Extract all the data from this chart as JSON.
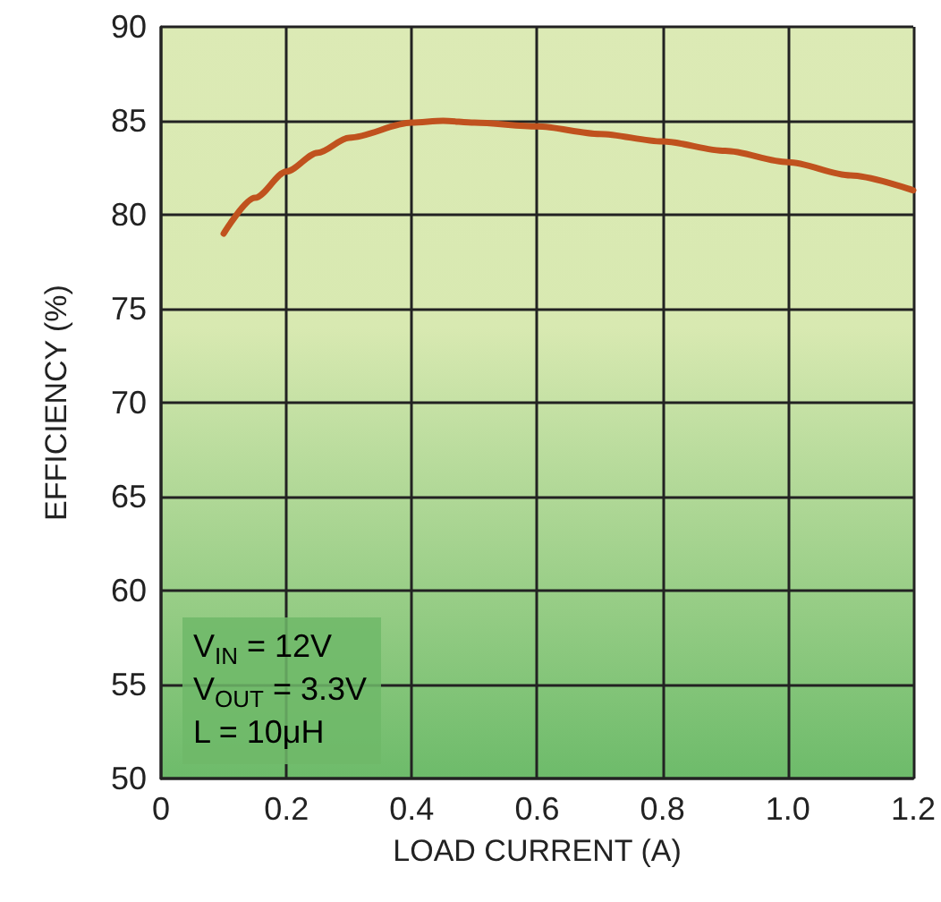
{
  "chart_data": {
    "type": "line",
    "xlabel": "LOAD CURRENT (A)",
    "ylabel": "EFFICIENCY (%)",
    "x": [
      0.1,
      0.15,
      0.2,
      0.25,
      0.3,
      0.4,
      0.45,
      0.5,
      0.6,
      0.7,
      0.8,
      0.9,
      1.0,
      1.1,
      1.2
    ],
    "series": [
      {
        "color": "#c0521e",
        "values": [
          79.0,
          80.9,
          82.3,
          83.3,
          84.1,
          84.9,
          85.0,
          84.9,
          84.7,
          84.3,
          83.9,
          83.4,
          82.8,
          82.1,
          81.3
        ]
      }
    ],
    "xlim": [
      0,
      1.2
    ],
    "xticks": [
      0,
      {
        "value": 0.2,
        "label": "0.2"
      },
      {
        "value": 0.4,
        "label": "0.4"
      },
      {
        "value": 0.6,
        "label": "0.6"
      },
      {
        "value": 0.8,
        "label": "0.8"
      },
      {
        "value": 1.0,
        "label": "1.0"
      },
      {
        "value": 1.2,
        "label": "1.2"
      }
    ],
    "ylim": [
      50,
      90
    ],
    "yticks": [
      50,
      55,
      60,
      65,
      70,
      75,
      80,
      85,
      90
    ],
    "grid": true,
    "marker": "none",
    "line_style": "solid",
    "annotations": [
      "V$_{IN}$ = 12V",
      "V$_{OUT}$ = 3.3V",
      "L = 10μH"
    ]
  }
}
